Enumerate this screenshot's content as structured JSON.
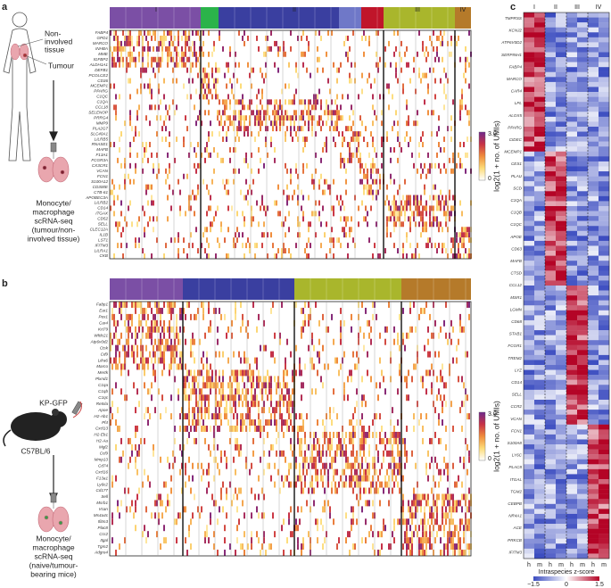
{
  "panel_a": {
    "label": "a",
    "tissue_lines": [
      "Non-",
      "involved",
      "tissue"
    ],
    "tumour_label": "Tumour",
    "method_lines": [
      "Monocyte/",
      "macrophage",
      "scRNA-seq",
      "(tumour/non-",
      "involved tissue)"
    ],
    "clusters": [
      "I",
      "II",
      "III",
      "IV"
    ],
    "genes": [
      "FABP4",
      "GPD1",
      "MARCO",
      "INHBA",
      "MME",
      "IGFBP2",
      "ALDH1A1",
      "DEFB1",
      "PCOLCE2",
      "CD36",
      "MCEMP1",
      "PPARG",
      "C1QC",
      "C1QA",
      "CCL18",
      "SELENOP",
      "PRRG4",
      "MMP9",
      "PLA2G7",
      "SLC40A1",
      "LILRB5",
      "RNASE1",
      "MAFB",
      "F13A1",
      "FCGR3A",
      "CX3CR1",
      "VCAN",
      "FCN1",
      "S100A12",
      "CD300E",
      "CTB-61",
      "APOBEC3A",
      "LILRB2",
      "CD14",
      "ITGAX",
      "CD52",
      "SELL",
      "CLEC12A",
      "IL1B",
      "LST1",
      "IFITM3",
      "LILRA1",
      "CKB"
    ],
    "colorbar": {
      "max": "3.0",
      "min": "0",
      "title": "log2(1 + no. of UMIs)"
    }
  },
  "panel_b": {
    "label": "b",
    "strain": "KP-GFP",
    "mouse": "C57BL/6",
    "method_lines": [
      "Monocyte/",
      "macrophage",
      "scRNA-seq",
      "(naive/tumour-",
      "bearing mice)"
    ],
    "genes": [
      "Fabp1",
      "Ear1",
      "Pex1",
      "Car4",
      "Krt79",
      "Wfdc21",
      "Atp6v0d2",
      "Ctsk",
      "Cd9",
      "Lilra6",
      "Marco",
      "Mertk",
      "Plxnd1",
      "C1qa",
      "C1qb",
      "C1qc",
      "Retnla",
      "Apoe",
      "H2-Ab1",
      "Pf4",
      "Cxcl13",
      "H2-Eb1",
      "H2-Aa",
      "Mgl2",
      "Ccl9",
      "Mmp13",
      "Cd74",
      "Cxcl16",
      "F13a1",
      "Ly6c2",
      "Cd177",
      "Sell",
      "Msrb1",
      "Vcan",
      "Ms4a4c",
      "Ifitm3",
      "Plac8",
      "Ccr2",
      "Itgal",
      "Tgm2",
      "Adgre4"
    ],
    "colorbar": {
      "max": "3.0",
      "min": "0",
      "title": "log2(1 + no. of UMIs)"
    }
  },
  "panel_c": {
    "label": "c",
    "clusters": [
      "I",
      "II",
      "III",
      "IV"
    ],
    "columns": [
      "h",
      "m",
      "h",
      "m",
      "h",
      "m",
      "h",
      "m"
    ],
    "genes": [
      "TMPRSS",
      "KCNJ2",
      "ATP6V0D2",
      "SERPINH1",
      "FABP4",
      "MARCO",
      "CAR4",
      "LPL",
      "ALOX5",
      "PPARG",
      "CIDEC",
      "MCEMP1",
      "CES1",
      "PLAU",
      "SCD",
      "C1QA",
      "C1QB",
      "C1QC",
      "APOE",
      "CD63",
      "MAFB",
      "CTSD",
      "CCL12",
      "MSR1",
      "LGMN",
      "CD68",
      "STAB1",
      "FCGR1",
      "TREM2",
      "LYZ",
      "CD14",
      "SELL",
      "CCR2",
      "VCAN",
      "FCN1",
      "S100A8",
      "LY6C",
      "PLAC8",
      "ITGAL",
      "TGM2",
      "CEBPB",
      "NR4A1",
      "ACE",
      "PRKCB",
      "IFITM3"
    ],
    "colorbar": {
      "title": "Intraspecies z-score",
      "ticks": [
        "−1.5",
        "0",
        "1.5"
      ]
    }
  }
}
